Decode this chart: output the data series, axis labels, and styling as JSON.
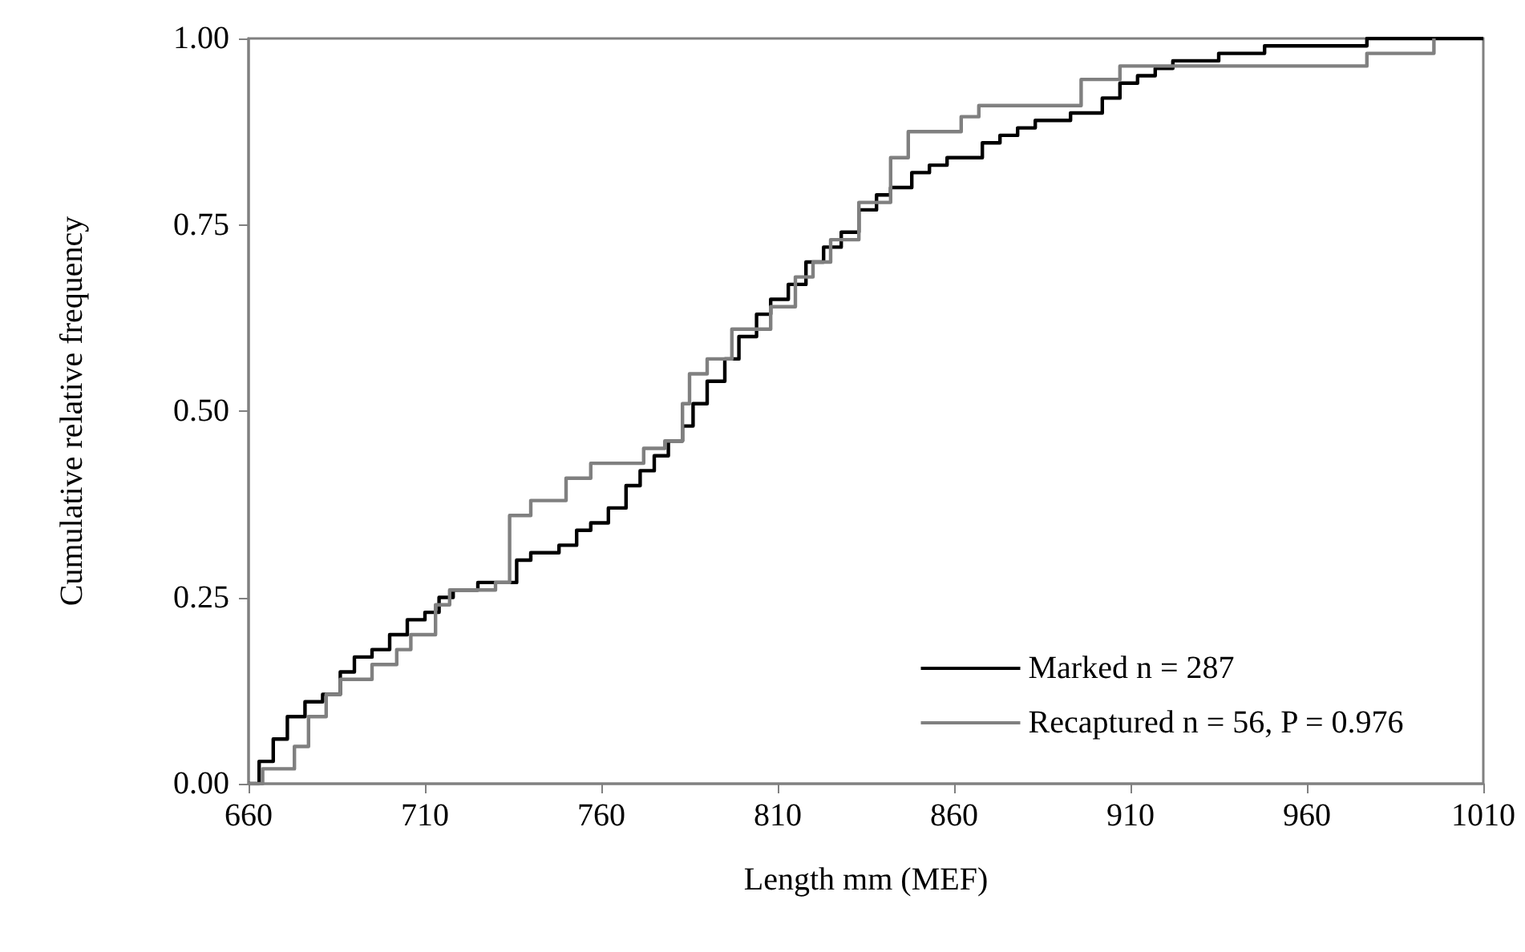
{
  "chart_data": {
    "type": "step",
    "xlabel": "Length mm (MEF)",
    "ylabel": "Cumulative relative frequency",
    "xlim": [
      660,
      1010
    ],
    "xticks": [
      660,
      710,
      760,
      810,
      860,
      910,
      960,
      1010
    ],
    "ylim": [
      0,
      1
    ],
    "yticks": [
      {
        "value": 0,
        "label": "0.00"
      },
      {
        "value": 0.25,
        "label": "0.25"
      },
      {
        "value": 0.5,
        "label": "0.50"
      },
      {
        "value": 0.75,
        "label": "0.75"
      },
      {
        "value": 1,
        "label": "1.00"
      }
    ],
    "grid": false,
    "legend": "bottom right",
    "marker": "none",
    "line_style": "solid",
    "series": [
      {
        "name": "Marked n = 287",
        "color": "#000000",
        "x": [
          660,
          663,
          667,
          671,
          676,
          681,
          686,
          690,
          695,
          700,
          705,
          710,
          714,
          718,
          725,
          733,
          736,
          740,
          748,
          753,
          757,
          762,
          767,
          771,
          775,
          779,
          783,
          786,
          790,
          795,
          799,
          804,
          808,
          813,
          818,
          823,
          828,
          833,
          838,
          842,
          848,
          853,
          858,
          868,
          873,
          878,
          883,
          893,
          897,
          902,
          907,
          912,
          917,
          922,
          935,
          948,
          977,
          1010
        ],
        "values": [
          0,
          0.03,
          0.06,
          0.09,
          0.11,
          0.12,
          0.15,
          0.17,
          0.18,
          0.2,
          0.22,
          0.23,
          0.25,
          0.26,
          0.27,
          0.27,
          0.3,
          0.31,
          0.32,
          0.34,
          0.35,
          0.37,
          0.4,
          0.42,
          0.44,
          0.46,
          0.48,
          0.51,
          0.54,
          0.57,
          0.6,
          0.63,
          0.65,
          0.67,
          0.7,
          0.72,
          0.74,
          0.77,
          0.79,
          0.8,
          0.82,
          0.83,
          0.84,
          0.86,
          0.87,
          0.88,
          0.89,
          0.9,
          0.9,
          0.92,
          0.94,
          0.95,
          0.96,
          0.97,
          0.98,
          0.99,
          1,
          1
        ]
      },
      {
        "name": "Recaptured n = 56, P = 0.976",
        "color": "#808080",
        "x": [
          660,
          664,
          673,
          677,
          682,
          686,
          695,
          702,
          706,
          713,
          717,
          730,
          734,
          740,
          750,
          757,
          772,
          778,
          783,
          785,
          790,
          797,
          808,
          815,
          820,
          825,
          833,
          842,
          847,
          862,
          867,
          896,
          907,
          977,
          996
        ],
        "values": [
          0,
          0.02,
          0.05,
          0.09,
          0.12,
          0.14,
          0.16,
          0.18,
          0.2,
          0.24,
          0.26,
          0.27,
          0.36,
          0.38,
          0.41,
          0.43,
          0.45,
          0.46,
          0.51,
          0.55,
          0.57,
          0.61,
          0.64,
          0.68,
          0.7,
          0.73,
          0.78,
          0.84,
          0.875,
          0.895,
          0.91,
          0.945,
          0.963,
          0.98,
          1
        ]
      }
    ]
  }
}
